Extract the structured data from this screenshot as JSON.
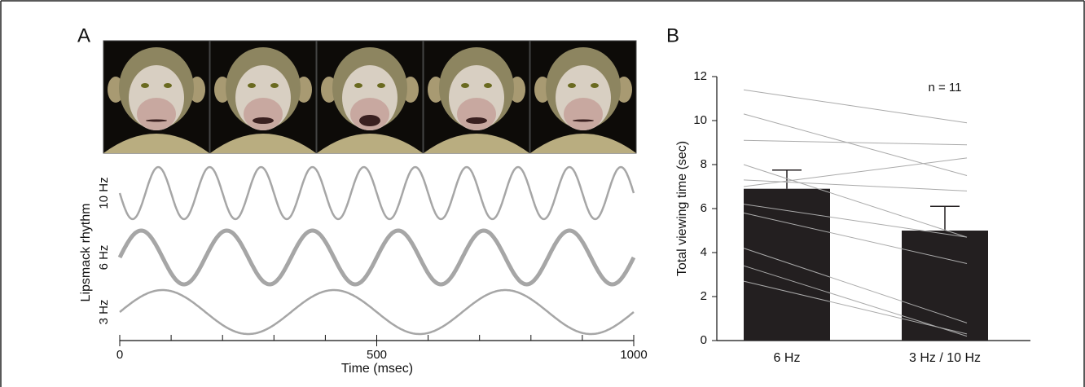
{
  "chart_data": [
    {
      "type": "line",
      "panel_label": "A",
      "y_label": "Lipsmack rhythm",
      "x_label": "Time (msec)",
      "xlim": [
        0,
        1000
      ],
      "xticks": [
        0,
        500,
        1000
      ],
      "minor_xticks": [
        100,
        200,
        300,
        400,
        600,
        700,
        800,
        900
      ],
      "series": [
        {
          "name": "10 Hz",
          "frequency": 10,
          "color": "#a6a6a6"
        },
        {
          "name": "6 Hz",
          "frequency": 6,
          "color": "#a6a6a6"
        },
        {
          "name": "3 Hz",
          "frequency": 3,
          "color": "#a6a6a6"
        }
      ]
    },
    {
      "type": "bar",
      "panel_label": "B",
      "y_label": "Total viewing time (sec)",
      "annotation": "n = 11",
      "categories": [
        "6 Hz",
        "3 Hz / 10 Hz"
      ],
      "values": [
        6.9,
        5.0
      ],
      "errors": [
        0.85,
        1.1
      ],
      "color": "#231f20",
      "ylim": [
        0,
        12
      ],
      "yticks": [
        0,
        2,
        4,
        6,
        8,
        10,
        12
      ],
      "individuals": [
        [
          11.4,
          9.9
        ],
        [
          10.3,
          7.5
        ],
        [
          9.1,
          8.9
        ],
        [
          8.0,
          4.7
        ],
        [
          7.3,
          6.8
        ],
        [
          7.0,
          8.3
        ],
        [
          6.2,
          4.7
        ],
        [
          5.8,
          3.5
        ],
        [
          4.2,
          0.8
        ],
        [
          3.4,
          0.2
        ],
        [
          2.7,
          0.3
        ]
      ],
      "individual_color": "#aaaaaa"
    }
  ]
}
